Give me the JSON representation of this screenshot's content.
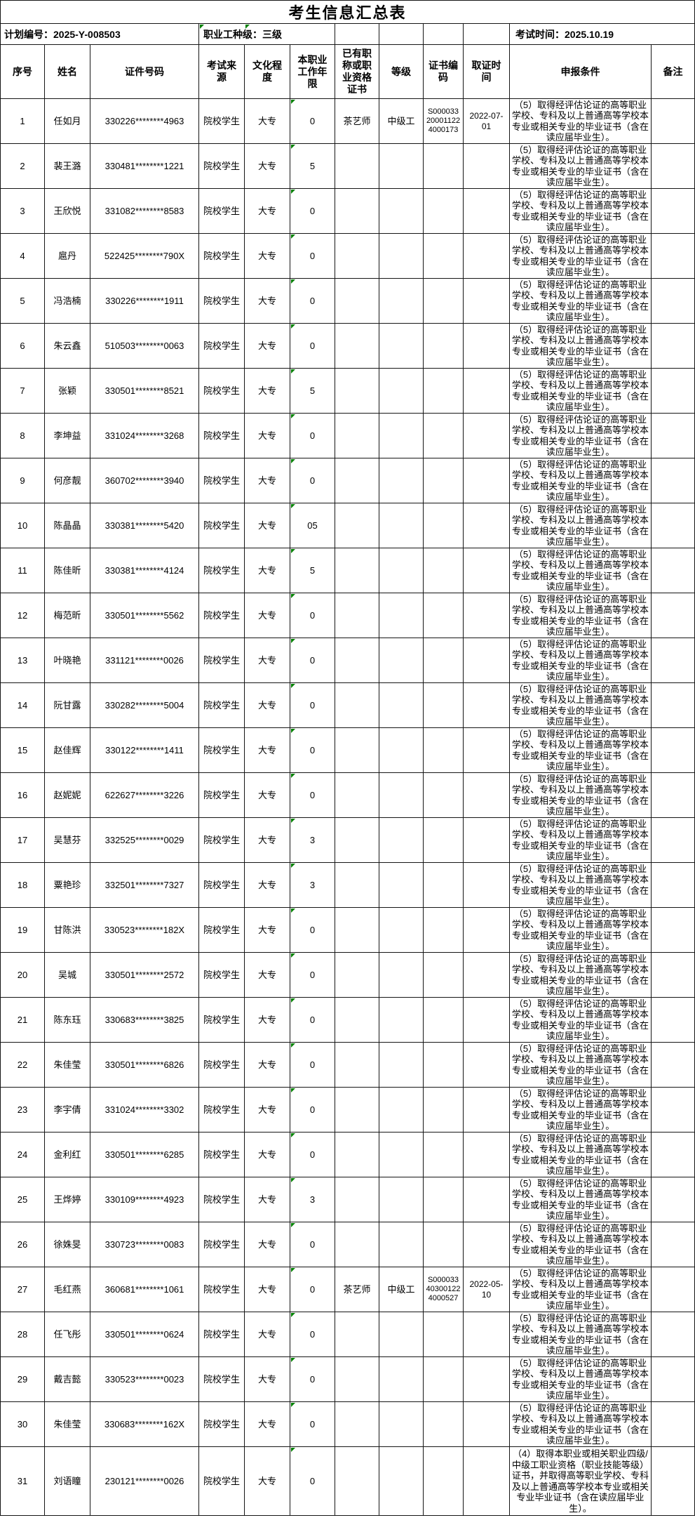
{
  "title": "考生信息汇总表",
  "info": {
    "plan_label": "计划编号：2025-Y-008503",
    "grade_label": "职业工种级：三级",
    "exam_time_label": "考试时间：2025.10.19"
  },
  "columns": [
    "序号",
    "姓名",
    "证件号码",
    "考试来\n源",
    "文化程\n度",
    "本职业\n工作年\n限",
    "已有职\n称或职\n业资格\n证书",
    "等级",
    "证书编\n码",
    "取证时\n间",
    "申报条件",
    "备注"
  ],
  "conditions": {
    "c5": "（5）取得经评估论证的高等职业学校、专科及以上普通高等学校本专业或相关专业的毕业证书（含在读应届毕业生）。",
    "c4": "（4）取得本职业或相关职业四级/中级工职业资格（职业技能等级）证书，并取得高等职业学校、专科及以上普通高等学校本专业或相关专业毕业证书（含在读应届毕业生）。"
  },
  "colors": {
    "comment_marker_green": "#008000",
    "border": "#161616",
    "background": "#ffffff"
  },
  "rows": [
    {
      "seq": "1",
      "name": "任如月",
      "idno": "330226********4963",
      "source": "院校学生",
      "edu": "大专",
      "years": "0",
      "existing": "茶艺师",
      "level": "中级工",
      "certno": "S000033200011224000173",
      "date": "2022-07-01",
      "cond": "c5",
      "note": ""
    },
    {
      "seq": "2",
      "name": "裴王潞",
      "idno": "330481********1221",
      "source": "院校学生",
      "edu": "大专",
      "years": "5",
      "existing": "",
      "level": "",
      "certno": "",
      "date": "",
      "cond": "c5",
      "note": ""
    },
    {
      "seq": "3",
      "name": "王欣悦",
      "idno": "331082********8583",
      "source": "院校学生",
      "edu": "大专",
      "years": "0",
      "existing": "",
      "level": "",
      "certno": "",
      "date": "",
      "cond": "c5",
      "note": ""
    },
    {
      "seq": "4",
      "name": "扈丹",
      "idno": "522425********790X",
      "source": "院校学生",
      "edu": "大专",
      "years": "0",
      "existing": "",
      "level": "",
      "certno": "",
      "date": "",
      "cond": "c5",
      "note": ""
    },
    {
      "seq": "5",
      "name": "冯浩楠",
      "idno": "330226********1911",
      "source": "院校学生",
      "edu": "大专",
      "years": "0",
      "existing": "",
      "level": "",
      "certno": "",
      "date": "",
      "cond": "c5",
      "note": ""
    },
    {
      "seq": "6",
      "name": "朱云鑫",
      "idno": "510503********0063",
      "source": "院校学生",
      "edu": "大专",
      "years": "0",
      "existing": "",
      "level": "",
      "certno": "",
      "date": "",
      "cond": "c5",
      "note": ""
    },
    {
      "seq": "7",
      "name": "张颖",
      "idno": "330501********8521",
      "source": "院校学生",
      "edu": "大专",
      "years": "5",
      "existing": "",
      "level": "",
      "certno": "",
      "date": "",
      "cond": "c5",
      "note": ""
    },
    {
      "seq": "8",
      "name": "李坤益",
      "idno": "331024********3268",
      "source": "院校学生",
      "edu": "大专",
      "years": "0",
      "existing": "",
      "level": "",
      "certno": "",
      "date": "",
      "cond": "c5",
      "note": ""
    },
    {
      "seq": "9",
      "name": "何彦靓",
      "idno": "360702********3940",
      "source": "院校学生",
      "edu": "大专",
      "years": "0",
      "existing": "",
      "level": "",
      "certno": "",
      "date": "",
      "cond": "c5",
      "note": ""
    },
    {
      "seq": "10",
      "name": "陈晶晶",
      "idno": "330381********5420",
      "source": "院校学生",
      "edu": "大专",
      "years": "05",
      "existing": "",
      "level": "",
      "certno": "",
      "date": "",
      "cond": "c5",
      "note": ""
    },
    {
      "seq": "11",
      "name": "陈佳昕",
      "idno": "330381********4124",
      "source": "院校学生",
      "edu": "大专",
      "years": "5",
      "existing": "",
      "level": "",
      "certno": "",
      "date": "",
      "cond": "c5",
      "note": ""
    },
    {
      "seq": "12",
      "name": "梅范昕",
      "idno": "330501********5562",
      "source": "院校学生",
      "edu": "大专",
      "years": "0",
      "existing": "",
      "level": "",
      "certno": "",
      "date": "",
      "cond": "c5",
      "note": ""
    },
    {
      "seq": "13",
      "name": "叶晓艳",
      "idno": "331121********0026",
      "source": "院校学生",
      "edu": "大专",
      "years": "0",
      "existing": "",
      "level": "",
      "certno": "",
      "date": "",
      "cond": "c5",
      "note": ""
    },
    {
      "seq": "14",
      "name": "阮甘露",
      "idno": "330282********5004",
      "source": "院校学生",
      "edu": "大专",
      "years": "0",
      "existing": "",
      "level": "",
      "certno": "",
      "date": "",
      "cond": "c5",
      "note": ""
    },
    {
      "seq": "15",
      "name": "赵佳辉",
      "idno": "330122********1411",
      "source": "院校学生",
      "edu": "大专",
      "years": "0",
      "existing": "",
      "level": "",
      "certno": "",
      "date": "",
      "cond": "c5",
      "note": ""
    },
    {
      "seq": "16",
      "name": "赵妮妮",
      "idno": "622627********3226",
      "source": "院校学生",
      "edu": "大专",
      "years": "0",
      "existing": "",
      "level": "",
      "certno": "",
      "date": "",
      "cond": "c5",
      "note": ""
    },
    {
      "seq": "17",
      "name": "吴慧芬",
      "idno": "332525********0029",
      "source": "院校学生",
      "edu": "大专",
      "years": "3",
      "existing": "",
      "level": "",
      "certno": "",
      "date": "",
      "cond": "c5",
      "note": ""
    },
    {
      "seq": "18",
      "name": "粟艳珍",
      "idno": "332501********7327",
      "source": "院校学生",
      "edu": "大专",
      "years": "3",
      "existing": "",
      "level": "",
      "certno": "",
      "date": "",
      "cond": "c5",
      "note": ""
    },
    {
      "seq": "19",
      "name": "甘陈洪",
      "idno": "330523********182X",
      "source": "院校学生",
      "edu": "大专",
      "years": "0",
      "existing": "",
      "level": "",
      "certno": "",
      "date": "",
      "cond": "c5",
      "note": ""
    },
    {
      "seq": "20",
      "name": "吴城",
      "idno": "330501********2572",
      "source": "院校学生",
      "edu": "大专",
      "years": "0",
      "existing": "",
      "level": "",
      "certno": "",
      "date": "",
      "cond": "c5",
      "note": ""
    },
    {
      "seq": "21",
      "name": "陈东珏",
      "idno": "330683********3825",
      "source": "院校学生",
      "edu": "大专",
      "years": "0",
      "existing": "",
      "level": "",
      "certno": "",
      "date": "",
      "cond": "c5",
      "note": ""
    },
    {
      "seq": "22",
      "name": "朱佳莹",
      "idno": "330501********6826",
      "source": "院校学生",
      "edu": "大专",
      "years": "0",
      "existing": "",
      "level": "",
      "certno": "",
      "date": "",
      "cond": "c5",
      "note": ""
    },
    {
      "seq": "23",
      "name": "李宇倩",
      "idno": "331024********3302",
      "source": "院校学生",
      "edu": "大专",
      "years": "0",
      "existing": "",
      "level": "",
      "certno": "",
      "date": "",
      "cond": "c5",
      "note": ""
    },
    {
      "seq": "24",
      "name": "金利红",
      "idno": "330501********6285",
      "source": "院校学生",
      "edu": "大专",
      "years": "0",
      "existing": "",
      "level": "",
      "certno": "",
      "date": "",
      "cond": "c5",
      "note": ""
    },
    {
      "seq": "25",
      "name": "王烨婷",
      "idno": "330109********4923",
      "source": "院校学生",
      "edu": "大专",
      "years": "3",
      "existing": "",
      "level": "",
      "certno": "",
      "date": "",
      "cond": "c5",
      "note": ""
    },
    {
      "seq": "26",
      "name": "徐姝旻",
      "idno": "330723********0083",
      "source": "院校学生",
      "edu": "大专",
      "years": "0",
      "existing": "",
      "level": "",
      "certno": "",
      "date": "",
      "cond": "c5",
      "note": ""
    },
    {
      "seq": "27",
      "name": "毛红燕",
      "idno": "360681********1061",
      "source": "院校学生",
      "edu": "大专",
      "years": "0",
      "existing": "茶艺师",
      "level": "中级工",
      "certno": "S000033403001224000527",
      "date": "2022-05-10",
      "cond": "c5",
      "note": ""
    },
    {
      "seq": "28",
      "name": "任飞彤",
      "idno": "330501********0624",
      "source": "院校学生",
      "edu": "大专",
      "years": "0",
      "existing": "",
      "level": "",
      "certno": "",
      "date": "",
      "cond": "c5",
      "note": ""
    },
    {
      "seq": "29",
      "name": "戴吉懿",
      "idno": "330523********0023",
      "source": "院校学生",
      "edu": "大专",
      "years": "0",
      "existing": "",
      "level": "",
      "certno": "",
      "date": "",
      "cond": "c5",
      "note": ""
    },
    {
      "seq": "30",
      "name": "朱佳莹",
      "idno": "330683********162X",
      "source": "院校学生",
      "edu": "大专",
      "years": "0",
      "existing": "",
      "level": "",
      "certno": "",
      "date": "",
      "cond": "c5",
      "note": ""
    },
    {
      "seq": "31",
      "name": "刘语瞳",
      "idno": "230121********0026",
      "source": "院校学生",
      "edu": "大专",
      "years": "0",
      "existing": "",
      "level": "",
      "certno": "",
      "date": "",
      "cond": "c4",
      "note": ""
    }
  ]
}
